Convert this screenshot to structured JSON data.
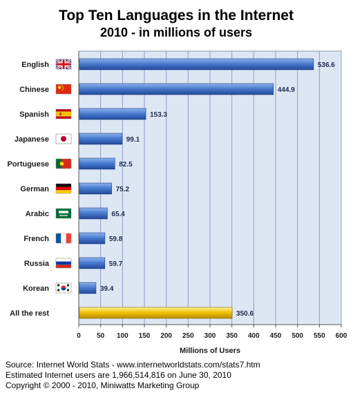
{
  "chart_data": {
    "type": "bar",
    "orientation": "horizontal",
    "title": "Top Ten Languages in the Internet",
    "subtitle": "2010 - in millions of users",
    "xlabel": "Millions of Users",
    "ylabel": "",
    "xlim": [
      0,
      600
    ],
    "xticks": [
      0,
      50,
      100,
      150,
      200,
      250,
      300,
      350,
      400,
      450,
      500,
      550,
      600
    ],
    "grid": true,
    "categories": [
      "English",
      "Chinese",
      "Spanish",
      "Japanese",
      "Portuguese",
      "German",
      "Arabic",
      "French",
      "Russia",
      "Korean",
      "All the rest"
    ],
    "values": [
      536.6,
      444.9,
      153.3,
      99.1,
      82.5,
      75.2,
      65.4,
      59.8,
      59.7,
      39.4,
      350.6
    ],
    "value_labels": [
      "536.6",
      "444.9",
      "153.3",
      "99.1",
      "82.5",
      "75.2",
      "65.4",
      "59.8",
      "59.7",
      "39.4",
      "350.6"
    ],
    "flags": [
      "uk-flag-icon",
      "china-flag-icon",
      "spain-flag-icon",
      "japan-flag-icon",
      "portugal-flag-icon",
      "germany-flag-icon",
      "saudi-flag-icon",
      "france-flag-icon",
      "russia-flag-icon",
      "korea-flag-icon",
      ""
    ],
    "colors": {
      "bar": "#3d6fc4",
      "bar_highlight": "#e8b800",
      "plot_bg": "#dde6f3",
      "grid": "#8aa0c8"
    }
  },
  "footer": {
    "source": "Source: Internet World Stats - www.internetworldstats.com/stats7.htm",
    "estimate": "Estimated Internet users are 1,966,514,816 on June 30, 2010",
    "copyright": "Copyright © 2000 - 2010, Miniwatts Marketing Group"
  }
}
